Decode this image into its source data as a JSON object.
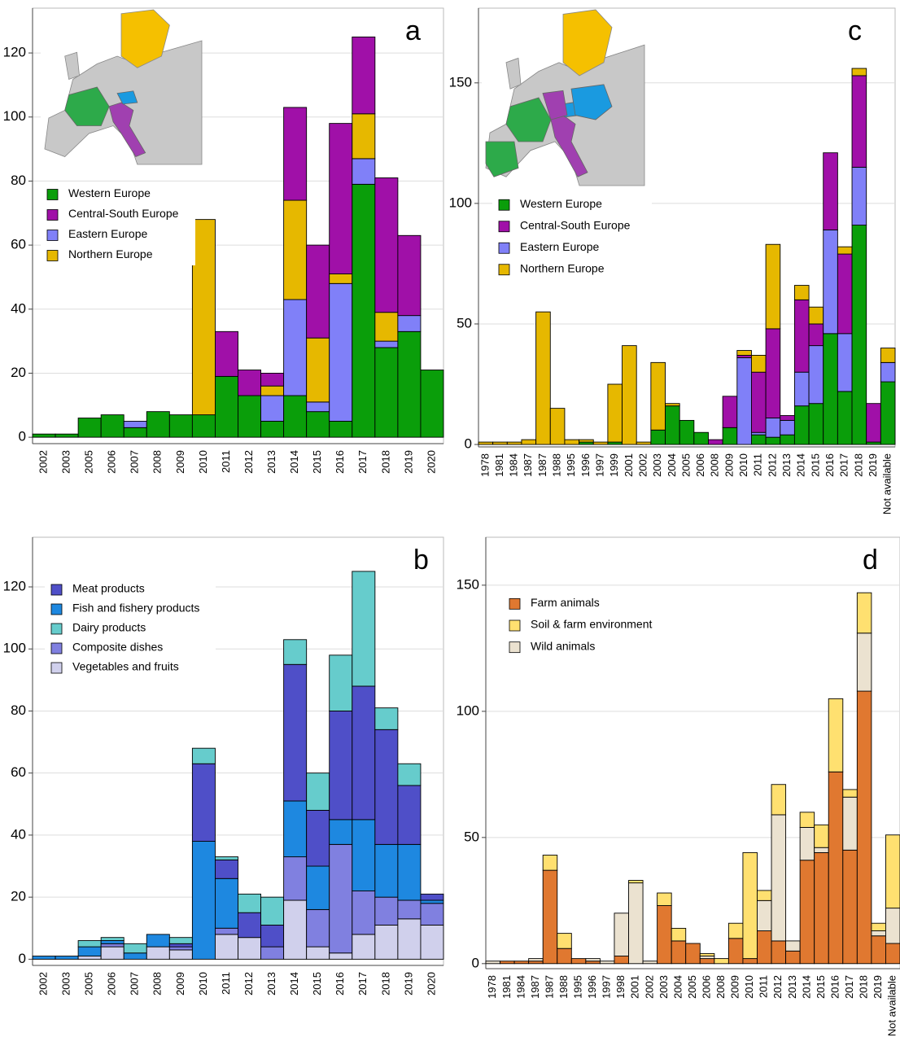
{
  "chart_data": [
    {
      "type": "stacked_bar",
      "label": "a",
      "categories": [
        "2002",
        "2003",
        "2005",
        "2006",
        "2007",
        "2008",
        "2009",
        "2010",
        "2011",
        "2012",
        "2013",
        "2014",
        "2015",
        "2016",
        "2017",
        "2018",
        "2019",
        "2020"
      ],
      "series": [
        {
          "name": "Western Europe",
          "color": "#0a9e0a",
          "values": [
            1,
            1,
            6,
            7,
            3,
            8,
            7,
            7,
            19,
            13,
            5,
            13,
            8,
            5,
            79,
            28,
            33,
            21
          ]
        },
        {
          "name": "Central-South Europe",
          "color": "#a010a8",
          "values": [
            0,
            0,
            0,
            0,
            0,
            0,
            0,
            0,
            14,
            8,
            4,
            29,
            29,
            47,
            24,
            42,
            25,
            0
          ]
        },
        {
          "name": "Eastern Europe",
          "color": "#8080f8",
          "values": [
            0,
            0,
            0,
            0,
            2,
            0,
            0,
            0,
            0,
            0,
            8,
            30,
            3,
            43,
            8,
            2,
            5,
            0
          ]
        },
        {
          "name": "Northern Europe",
          "color": "#e6b800",
          "values": [
            0,
            0,
            0,
            0,
            0,
            0,
            0,
            61,
            0,
            0,
            3,
            31,
            20,
            3,
            14,
            9,
            0,
            0
          ]
        }
      ],
      "stack_order": [
        0,
        2,
        3,
        1
      ],
      "ylim": [
        -2,
        134
      ],
      "yticks": [
        0,
        20,
        40,
        60,
        80,
        100,
        120
      ],
      "grid": true
    },
    {
      "type": "stacked_bar",
      "label": "b",
      "categories": [
        "2002",
        "2003",
        "2005",
        "2006",
        "2007",
        "2008",
        "2009",
        "2010",
        "2011",
        "2012",
        "2013",
        "2014",
        "2015",
        "2016",
        "2017",
        "2018",
        "2019",
        "2020"
      ],
      "series": [
        {
          "name": "Meat products",
          "color": "#4f4fc8",
          "values": [
            0,
            0,
            0,
            0,
            0,
            0,
            1,
            25,
            6,
            8,
            7,
            44,
            18,
            35,
            43,
            37,
            19,
            2
          ]
        },
        {
          "name": "Fish and fishery products",
          "color": "#1e88e0",
          "values": [
            1,
            1,
            3,
            1,
            2,
            4,
            0,
            38,
            16,
            0,
            0,
            18,
            14,
            8,
            23,
            17,
            18,
            1
          ]
        },
        {
          "name": "Dairy products",
          "color": "#66cccc",
          "values": [
            0,
            0,
            2,
            1,
            3,
            0,
            2,
            5,
            1,
            6,
            9,
            8,
            12,
            18,
            37,
            7,
            7,
            0
          ]
        },
        {
          "name": "Composite dishes",
          "color": "#8080e0",
          "values": [
            0,
            0,
            0,
            1,
            0,
            0,
            1,
            0,
            2,
            0,
            4,
            14,
            12,
            35,
            14,
            9,
            6,
            7
          ]
        },
        {
          "name": "Vegetables and fruits",
          "color": "#d0d0ec",
          "values": [
            0,
            0,
            1,
            4,
            0,
            4,
            3,
            0,
            8,
            7,
            0,
            19,
            4,
            2,
            8,
            11,
            13,
            11
          ]
        }
      ],
      "stack_order": [
        4,
        3,
        1,
        0,
        2
      ],
      "ylim": [
        -2,
        136
      ],
      "yticks": [
        0,
        20,
        40,
        60,
        80,
        100,
        120
      ],
      "grid": true
    },
    {
      "type": "stacked_bar",
      "label": "c",
      "categories": [
        "1978",
        "1981",
        "1984",
        "1987",
        "1987",
        "1988",
        "1995",
        "1996",
        "1997",
        "1999",
        "2001",
        "2002",
        "2003",
        "2004",
        "2005",
        "2006",
        "2008",
        "2009",
        "2010",
        "2011",
        "2012",
        "2013",
        "2014",
        "2015",
        "2016",
        "2017",
        "2018",
        "2019",
        "Not available"
      ],
      "series": [
        {
          "name": "Western Europe",
          "color": "#0a9e0a",
          "values": [
            0,
            0,
            0,
            0,
            0,
            0,
            0,
            1,
            0,
            1,
            0,
            0,
            6,
            16,
            10,
            5,
            0,
            7,
            0,
            4,
            3,
            4,
            16,
            17,
            46,
            22,
            91,
            1,
            26
          ]
        },
        {
          "name": "Central-South Europe",
          "color": "#a010a8",
          "values": [
            0,
            0,
            0,
            0,
            0,
            0,
            0,
            0,
            0,
            0,
            0,
            0,
            0,
            0,
            0,
            0,
            2,
            13,
            1,
            25,
            37,
            2,
            30,
            9,
            32,
            33,
            38,
            16,
            0
          ]
        },
        {
          "name": "Eastern Europe",
          "color": "#8080f8",
          "values": [
            0,
            0,
            0,
            0,
            0,
            0,
            0,
            0,
            0,
            0,
            0,
            0,
            0,
            0,
            0,
            0,
            0,
            0,
            36,
            1,
            8,
            6,
            14,
            24,
            43,
            24,
            24,
            0,
            8
          ]
        },
        {
          "name": "Northern Europe",
          "color": "#e6b800",
          "values": [
            1,
            1,
            1,
            2,
            55,
            15,
            2,
            1,
            1,
            24,
            41,
            1,
            28,
            1,
            0,
            0,
            0,
            0,
            2,
            7,
            35,
            0,
            6,
            7,
            0,
            3,
            3,
            0,
            6
          ]
        }
      ],
      "stack_order": [
        0,
        2,
        1,
        3
      ],
      "ylim": [
        -1,
        181
      ],
      "yticks": [
        0,
        50,
        100,
        150
      ],
      "grid": true
    },
    {
      "type": "stacked_bar",
      "label": "d",
      "categories": [
        "1978",
        "1981",
        "1984",
        "1987",
        "1987",
        "1988",
        "1995",
        "1996",
        "1997",
        "1998",
        "2001",
        "2002",
        "2003",
        "2004",
        "2005",
        "2006",
        "2008",
        "2009",
        "2010",
        "2011",
        "2012",
        "2013",
        "2014",
        "2015",
        "2016",
        "2017",
        "2018",
        "2019",
        "Not available"
      ],
      "series": [
        {
          "name": "Farm animals",
          "color": "#e07830",
          "values": [
            0,
            1,
            1,
            1,
            37,
            6,
            2,
            1,
            0,
            3,
            0,
            0,
            23,
            9,
            8,
            2,
            0,
            10,
            2,
            13,
            9,
            5,
            41,
            44,
            76,
            45,
            108,
            11,
            8
          ]
        },
        {
          "name": "Soil & farm environment",
          "color": "#ffe070",
          "values": [
            0,
            0,
            0,
            0,
            6,
            6,
            0,
            0,
            0,
            0,
            1,
            0,
            5,
            5,
            0,
            1,
            2,
            6,
            42,
            4,
            12,
            0,
            6,
            9,
            29,
            3,
            16,
            3,
            29
          ]
        },
        {
          "name": "Wild animals",
          "color": "#ebe2d0",
          "values": [
            1,
            0,
            0,
            1,
            0,
            0,
            0,
            1,
            1,
            17,
            32,
            1,
            0,
            0,
            0,
            1,
            0,
            0,
            0,
            12,
            50,
            4,
            13,
            2,
            0,
            21,
            23,
            2,
            14
          ]
        }
      ],
      "stack_order": [
        0,
        2,
        1
      ],
      "ylim": [
        -2,
        169
      ],
      "yticks": [
        0,
        50,
        100,
        150
      ],
      "grid": true
    }
  ]
}
